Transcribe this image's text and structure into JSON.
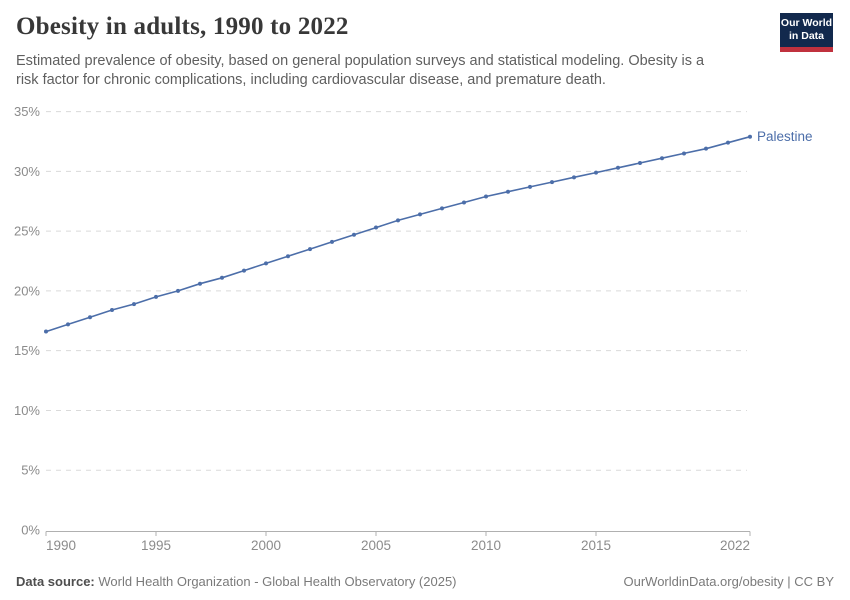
{
  "header": {
    "title": "Obesity in adults, 1990 to 2022",
    "subtitle": "Estimated prevalence of obesity, based on general population surveys and statistical modeling. Obesity is a risk factor for chronic complications, including cardiovascular disease, and premature death.",
    "logo": {
      "line1": "Our World",
      "line2": "in Data"
    }
  },
  "chart_data": {
    "type": "line",
    "title": "Obesity in adults, 1990 to 2022",
    "xlabel": "",
    "ylabel": "",
    "x": [
      1990,
      1991,
      1992,
      1993,
      1994,
      1995,
      1996,
      1997,
      1998,
      1999,
      2000,
      2001,
      2002,
      2003,
      2004,
      2005,
      2006,
      2007,
      2008,
      2009,
      2010,
      2011,
      2012,
      2013,
      2014,
      2015,
      2016,
      2017,
      2018,
      2019,
      2020,
      2021,
      2022
    ],
    "series": [
      {
        "name": "Palestine",
        "color": "#4C6EA9",
        "values": [
          16.6,
          17.2,
          17.8,
          18.4,
          18.9,
          19.5,
          20.0,
          20.6,
          21.1,
          21.7,
          22.3,
          22.9,
          23.5,
          24.1,
          24.7,
          25.3,
          25.9,
          26.4,
          26.9,
          27.4,
          27.9,
          28.3,
          28.7,
          29.1,
          29.5,
          29.9,
          30.3,
          30.7,
          31.1,
          31.5,
          31.9,
          32.4,
          32.9
        ]
      }
    ],
    "xlim": [
      1990,
      2022
    ],
    "ylim": [
      0,
      35
    ],
    "xticks": [
      1990,
      1995,
      2000,
      2005,
      2010,
      2015,
      2022
    ],
    "yticks": [
      0,
      5,
      10,
      15,
      20,
      25,
      30,
      35
    ],
    "ytick_suffix": "%",
    "grid": true,
    "grid_color": "#dadada",
    "axis_color": "#b0b0b0",
    "tick_label_color": "#8b8b8b",
    "legend": "end-of-line-label"
  },
  "footer": {
    "source_label": "Data source:",
    "source_text": " World Health Organization - Global Health Observatory (2025)",
    "url": "OurWorldinData.org/obesity",
    "separator": " | ",
    "license": "CC BY"
  }
}
